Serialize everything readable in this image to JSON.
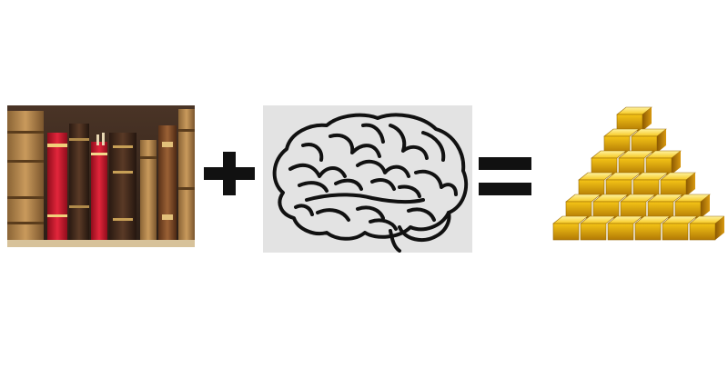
{
  "scene": {
    "background_color": "#ffffff",
    "equation": {
      "operator_1": "plus-sign",
      "operator_2": "equals-sign"
    },
    "operands": [
      {
        "name": "books-on-shelf-image",
        "role": "knowledge"
      },
      {
        "name": "brain-icon",
        "role": "mind"
      }
    ],
    "result": {
      "name": "gold-bars-pyramid-image",
      "role": "wealth"
    },
    "colors": {
      "operator": "#111111",
      "brain_panel_bg": "#e3e3e3",
      "gold": "#f3c21a",
      "book_red": "#c8142a",
      "book_brown": "#6b3d1e"
    }
  }
}
